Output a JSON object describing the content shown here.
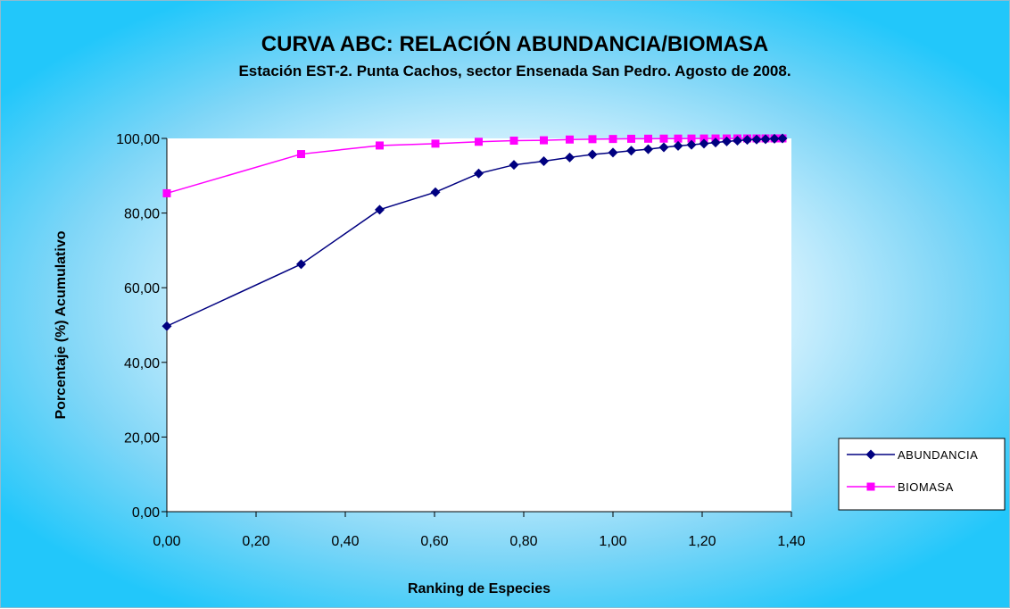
{
  "chart_data": {
    "type": "line",
    "title": "CURVA ABC: RELACIÓN ABUNDANCIA/BIOMASA",
    "subtitle": "Estación EST-2.  Punta Cachos, sector Ensenada San Pedro. Agosto de 2008.",
    "xlabel": "Ranking de Especies",
    "ylabel": "Porcentaje (%) Acumulativo",
    "xlim": [
      0,
      1.4
    ],
    "ylim": [
      0,
      100
    ],
    "x_ticks": [
      "0,00",
      "0,20",
      "0,40",
      "0,60",
      "0,80",
      "1,00",
      "1,20",
      "1,40"
    ],
    "y_ticks": [
      "0,00",
      "20,00",
      "40,00",
      "60,00",
      "80,00",
      "100,00"
    ],
    "grid": false,
    "legend_position": "right",
    "series": [
      {
        "name": "ABUNDANCIA",
        "color": "#000080",
        "marker": "diamond",
        "x": [
          0,
          0.301,
          0.477,
          0.602,
          0.699,
          0.778,
          0.845,
          0.903,
          0.954,
          1.0,
          1.041,
          1.079,
          1.114,
          1.146,
          1.176,
          1.204,
          1.23,
          1.255,
          1.279,
          1.301,
          1.322,
          1.342,
          1.362,
          1.38
        ],
        "values": [
          49.7,
          66.3,
          80.9,
          85.6,
          90.6,
          92.9,
          93.9,
          94.9,
          95.7,
          96.2,
          96.7,
          97.1,
          97.6,
          98.0,
          98.3,
          98.6,
          98.9,
          99.2,
          99.4,
          99.6,
          99.7,
          99.8,
          99.9,
          100.0
        ]
      },
      {
        "name": "BIOMASA",
        "color": "#ff00ff",
        "marker": "square",
        "x": [
          0,
          0.301,
          0.477,
          0.602,
          0.699,
          0.778,
          0.845,
          0.903,
          0.954,
          1.0,
          1.041,
          1.079,
          1.114,
          1.146,
          1.176,
          1.204,
          1.23,
          1.255,
          1.279,
          1.301,
          1.322,
          1.342,
          1.362,
          1.38
        ],
        "values": [
          85.3,
          95.8,
          98.1,
          98.6,
          99.1,
          99.4,
          99.5,
          99.7,
          99.8,
          99.85,
          99.9,
          99.92,
          99.94,
          99.95,
          99.96,
          99.97,
          99.98,
          99.98,
          99.99,
          99.99,
          99.99,
          100.0,
          100.0,
          100.0
        ]
      }
    ]
  }
}
